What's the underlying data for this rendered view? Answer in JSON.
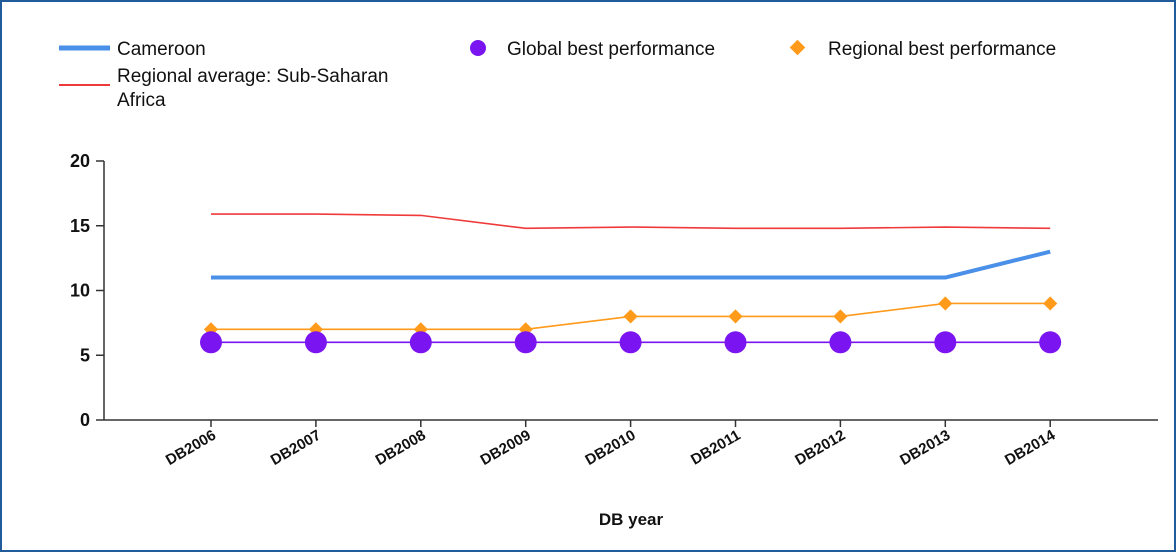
{
  "chart_data": {
    "type": "line",
    "title": "",
    "xlabel": "DB year",
    "ylabel": "",
    "ylim": [
      0,
      20
    ],
    "yticks": [
      0,
      5,
      10,
      15,
      20
    ],
    "categories": [
      "DB2006",
      "DB2007",
      "DB2008",
      "DB2009",
      "DB2010",
      "DB2011",
      "DB2012",
      "DB2013",
      "DB2014"
    ],
    "legend_position": "top",
    "grid": false,
    "series": [
      {
        "name": "Cameroon",
        "color": "#4a8fe8",
        "marker": "none",
        "values": [
          11,
          11,
          11,
          11,
          11,
          11,
          11,
          11,
          13
        ]
      },
      {
        "name": "Regional average: Sub-Saharan Africa",
        "legend_lines": [
          "Regional average: Sub-Saharan",
          "Africa"
        ],
        "color": "#f03a3a",
        "marker": "none",
        "values": [
          15.9,
          15.9,
          15.8,
          14.8,
          14.9,
          14.8,
          14.8,
          14.9,
          14.8
        ]
      },
      {
        "name": "Global best performance",
        "color": "#7a14f0",
        "marker": "circle",
        "values": [
          6,
          6,
          6,
          6,
          6,
          6,
          6,
          6,
          6
        ]
      },
      {
        "name": "Regional best performance",
        "color": "#ff9a1a",
        "marker": "diamond",
        "values": [
          7,
          7,
          7,
          7,
          8,
          8,
          8,
          9,
          9
        ]
      }
    ]
  }
}
